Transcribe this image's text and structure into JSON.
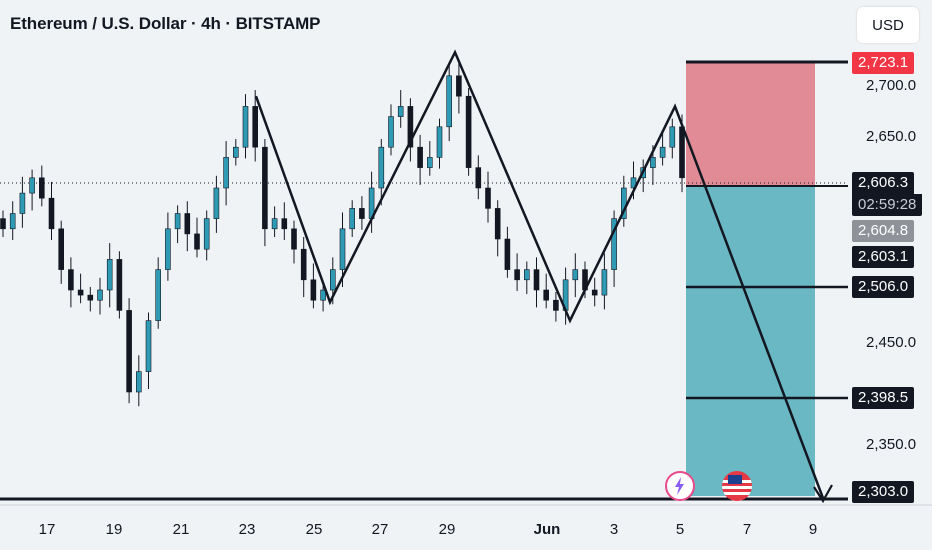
{
  "header": {
    "title": "Ethereum / U.S. Dollar · 4h · BITSTAMP",
    "currency_button": "USD"
  },
  "price_axis": {
    "ticks": [
      "2,700.0",
      "2,650.0",
      "2,450.0",
      "2,350.0"
    ]
  },
  "time_axis": {
    "ticks": [
      "17",
      "19",
      "21",
      "23",
      "25",
      "27",
      "29",
      "Jun",
      "3",
      "5",
      "7",
      "9"
    ]
  },
  "price_labels": {
    "stop_loss": "2,723.1",
    "last_price": "2,606.3",
    "countdown": "02:59:28",
    "entry": "2,604.8",
    "level_1": "2,603.1",
    "target_1": "2,506.0",
    "target_2": "2,398.5",
    "target_3": "2,303.0"
  },
  "colors": {
    "bull": "#26a69a",
    "bear": "#ef5350",
    "candle_up": "#2e9ab4",
    "candle_down": "#131722",
    "stop_zone": "#e08b96",
    "target_zone": "#6ab8c4",
    "stop_label": "#f23645",
    "background": "#f0f3f6"
  },
  "icons": {
    "event_1": "lightning-icon",
    "event_2": "us-flag-icon"
  },
  "chart_data": {
    "type": "candlestick",
    "symbol": "Ethereum / U.S. Dollar",
    "timeframe": "4h",
    "exchange": "BITSTAMP",
    "ylim": [
      2290,
      2760
    ],
    "last_price": 2606.3,
    "levels": [
      2723.1,
      2606.3,
      2604.8,
      2603.1,
      2506.0,
      2398.5,
      2303.0
    ],
    "position": {
      "side": "short",
      "entry": 2604.8,
      "stop": 2723.1,
      "target": 2303.0
    },
    "pattern_points": [
      {
        "x": "May 23",
        "y": 2690
      },
      {
        "x": "May 25",
        "y": 2488
      },
      {
        "x": "May 29",
        "y": 2733
      },
      {
        "x": "Jun 1",
        "y": 2470
      },
      {
        "x": "Jun 5",
        "y": 2680
      },
      {
        "x": "Jun 9",
        "y": 2296
      }
    ],
    "closes": [
      2560,
      2575,
      2595,
      2610,
      2590,
      2560,
      2520,
      2500,
      2495,
      2490,
      2500,
      2530,
      2480,
      2400,
      2420,
      2470,
      2520,
      2560,
      2575,
      2555,
      2540,
      2570,
      2600,
      2630,
      2640,
      2680,
      2640,
      2560,
      2570,
      2560,
      2540,
      2510,
      2490,
      2500,
      2520,
      2560,
      2580,
      2570,
      2600,
      2640,
      2670,
      2680,
      2640,
      2620,
      2630,
      2660,
      2710,
      2690,
      2620,
      2600,
      2580,
      2550,
      2520,
      2510,
      2520,
      2500,
      2490,
      2480,
      2510,
      2520,
      2500,
      2495,
      2520,
      2570,
      2600,
      2610,
      2620,
      2630,
      2640,
      2660,
      2610
    ]
  }
}
